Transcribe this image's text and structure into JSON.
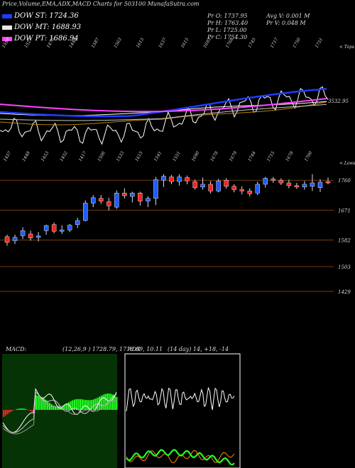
{
  "header": {
    "title": "Price,Volume,EMA,ADX,MACD Charts for 503100  MunafaSutra.com"
  },
  "legend": [
    {
      "label": "DOW ST: 1724.36",
      "color": "#1e3cff"
    },
    {
      "label": "DOW MT: 1688.93",
      "color": "#e8e8e8"
    },
    {
      "label": "DOW PT: 1686.94",
      "color": "#ff44ff"
    }
  ],
  "ohlc": {
    "open": "Pr    O: 1737.95",
    "high": "Pr    H: 1763.40",
    "low": "Pr    L: 1725.00",
    "close": "Pr    C: 1754.30",
    "avg_vol": "Avg V: 0.001  M",
    "vol": "Pr    V: 0.048  M"
  },
  "upper_panel": {
    "top_right_tag": "< Tops",
    "bottom_right_tag": "< Lows",
    "price_label": "3532.95",
    "tops": [
      "1588",
      "1527",
      "1470",
      "1440",
      "1587",
      "1563",
      "1615",
      "1637",
      "1615",
      "1693",
      "1768",
      "1745",
      "1717",
      "1750",
      "1751"
    ],
    "lows": [
      "1457",
      "1448",
      "1453",
      "1452",
      "1417",
      "1506",
      "1533",
      "1615",
      "1541",
      "1551",
      "1690",
      "1678",
      "1679",
      "1744",
      "1715",
      "1678",
      "1700"
    ]
  },
  "chart_data": {
    "type": "candlestick",
    "title": "Price,Volume,EMA,ADX,MACD Charts for 503100  MunafaSutra.com",
    "y_ticks": [
      "1760",
      "1671",
      "1582",
      "1503",
      "1429"
    ],
    "ylim": [
      1410,
      1790
    ],
    "candles": [
      {
        "open": 1592,
        "high": 1598,
        "low": 1565,
        "close": 1575,
        "color": "red"
      },
      {
        "open": 1580,
        "high": 1598,
        "low": 1570,
        "close": 1590,
        "color": "blue"
      },
      {
        "open": 1595,
        "high": 1620,
        "low": 1585,
        "close": 1610,
        "color": "blue"
      },
      {
        "open": 1600,
        "high": 1610,
        "low": 1580,
        "close": 1588,
        "color": "red"
      },
      {
        "open": 1590,
        "high": 1606,
        "low": 1578,
        "close": 1594,
        "color": "blue"
      },
      {
        "open": 1610,
        "high": 1628,
        "low": 1598,
        "close": 1625,
        "color": "blue"
      },
      {
        "open": 1628,
        "high": 1634,
        "low": 1602,
        "close": 1608,
        "color": "red"
      },
      {
        "open": 1608,
        "high": 1626,
        "low": 1600,
        "close": 1612,
        "color": "blue"
      },
      {
        "open": 1612,
        "high": 1630,
        "low": 1606,
        "close": 1626,
        "color": "blue"
      },
      {
        "open": 1628,
        "high": 1648,
        "low": 1618,
        "close": 1640,
        "color": "blue"
      },
      {
        "open": 1640,
        "high": 1700,
        "low": 1638,
        "close": 1692,
        "color": "blue"
      },
      {
        "open": 1692,
        "high": 1716,
        "low": 1680,
        "close": 1708,
        "color": "blue"
      },
      {
        "open": 1706,
        "high": 1716,
        "low": 1690,
        "close": 1698,
        "color": "red"
      },
      {
        "open": 1696,
        "high": 1708,
        "low": 1670,
        "close": 1684,
        "color": "red"
      },
      {
        "open": 1680,
        "high": 1730,
        "low": 1675,
        "close": 1722,
        "color": "blue"
      },
      {
        "open": 1722,
        "high": 1736,
        "low": 1706,
        "close": 1714,
        "color": "red"
      },
      {
        "open": 1712,
        "high": 1726,
        "low": 1694,
        "close": 1722,
        "color": "blue"
      },
      {
        "open": 1722,
        "high": 1726,
        "low": 1685,
        "close": 1698,
        "color": "red"
      },
      {
        "open": 1698,
        "high": 1712,
        "low": 1680,
        "close": 1706,
        "color": "blue"
      },
      {
        "open": 1706,
        "high": 1770,
        "low": 1686,
        "close": 1762,
        "color": "blue"
      },
      {
        "open": 1760,
        "high": 1778,
        "low": 1740,
        "close": 1772,
        "color": "blue"
      },
      {
        "open": 1770,
        "high": 1776,
        "low": 1748,
        "close": 1756,
        "color": "red"
      },
      {
        "open": 1756,
        "high": 1778,
        "low": 1744,
        "close": 1770,
        "color": "blue"
      },
      {
        "open": 1768,
        "high": 1774,
        "low": 1748,
        "close": 1758,
        "color": "red"
      },
      {
        "open": 1756,
        "high": 1762,
        "low": 1732,
        "close": 1738,
        "color": "red"
      },
      {
        "open": 1740,
        "high": 1768,
        "low": 1732,
        "close": 1748,
        "color": "blue"
      },
      {
        "open": 1748,
        "high": 1758,
        "low": 1720,
        "close": 1728,
        "color": "red"
      },
      {
        "open": 1728,
        "high": 1764,
        "low": 1724,
        "close": 1758,
        "color": "blue"
      },
      {
        "open": 1760,
        "high": 1766,
        "low": 1735,
        "close": 1742,
        "color": "red"
      },
      {
        "open": 1742,
        "high": 1748,
        "low": 1724,
        "close": 1732,
        "color": "red"
      },
      {
        "open": 1732,
        "high": 1742,
        "low": 1718,
        "close": 1728,
        "color": "red"
      },
      {
        "open": 1728,
        "high": 1736,
        "low": 1712,
        "close": 1720,
        "color": "red"
      },
      {
        "open": 1722,
        "high": 1756,
        "low": 1716,
        "close": 1748,
        "color": "blue"
      },
      {
        "open": 1748,
        "high": 1770,
        "low": 1738,
        "close": 1766,
        "color": "blue"
      },
      {
        "open": 1764,
        "high": 1770,
        "low": 1752,
        "close": 1760,
        "color": "red"
      },
      {
        "open": 1760,
        "high": 1766,
        "low": 1746,
        "close": 1752,
        "color": "red"
      },
      {
        "open": 1752,
        "high": 1762,
        "low": 1736,
        "close": 1744,
        "color": "red"
      },
      {
        "open": 1744,
        "high": 1752,
        "low": 1734,
        "close": 1740,
        "color": "red"
      },
      {
        "open": 1740,
        "high": 1758,
        "low": 1732,
        "close": 1748,
        "color": "blue"
      },
      {
        "open": 1742,
        "high": 1778,
        "low": 1728,
        "close": 1752,
        "color": "blue"
      },
      {
        "open": 1737.95,
        "high": 1763.4,
        "low": 1725.0,
        "close": 1754.3,
        "color": "blue"
      },
      {
        "open": 1756,
        "high": 1768,
        "low": 1748,
        "close": 1752,
        "color": "red"
      }
    ]
  },
  "indicators": {
    "macd_label": "MACD:",
    "macd_params": "(12,26,9 ) 1728.79,  1718.69,  10.11",
    "adx_label": "ADX",
    "adx_params": "(14  day) 14,  +18,  -14"
  },
  "colors": {
    "bull": "#1e5cff",
    "bear": "#ff2020",
    "macd_bg": "#063306",
    "macd_pos": "#22ff22",
    "macd_neg": "#ff2020",
    "adx_orange": "#ff8c00",
    "adx_green": "#22ff22"
  }
}
